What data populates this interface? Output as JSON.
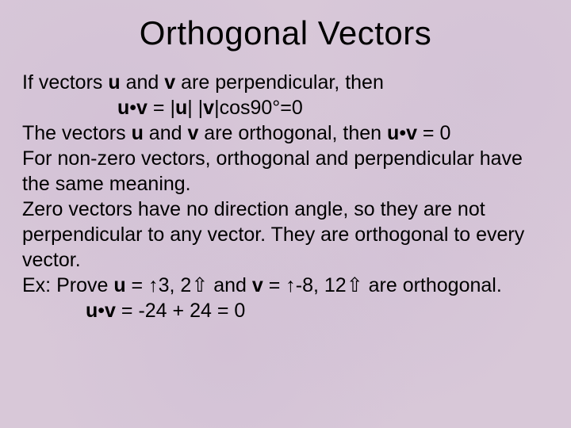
{
  "slide": {
    "title": "Orthogonal Vectors",
    "background_color": "#d8c8d8",
    "title_fontsize": 42,
    "body_fontsize": 25,
    "text_color": "#000000",
    "lines": {
      "l1a": "If vectors ",
      "l1b": "u",
      "l1c": " and ",
      "l1d": "v",
      "l1e": " are perpendicular, then",
      "l2a": "u",
      "l2b": "v",
      "l2c": " = |",
      "l2d": "u",
      "l2e": "| |",
      "l2f": "v",
      "l2g": "|cos90°=0",
      "l3a": "The vectors ",
      "l3b": "u",
      "l3c": " and ",
      "l3d": "v",
      "l3e": " are orthogonal, then ",
      "l3f": "u",
      "l3g": "v",
      "l3h": " = 0",
      "l4": "For non-zero vectors, orthogonal and perpendicular have the same meaning.",
      "l5": "Zero vectors have no direction angle, so they are not perpendicular to any vector.  They are orthogonal to every vector.",
      "l6a": "Ex: Prove ",
      "l6b": "u",
      "l6c": " = ",
      "l6d": "3, 2",
      "l6e": " and ",
      "l6f": "v",
      "l6g": " = ",
      "l6h": "-8, 12",
      "l6i": " are orthogonal.",
      "l7a": "u",
      "l7b": "v",
      "l7c": " =  -24 + 24 = 0"
    },
    "symbols": {
      "dot": "•",
      "lbrak": "↑",
      "rbrak": "⇧"
    }
  }
}
